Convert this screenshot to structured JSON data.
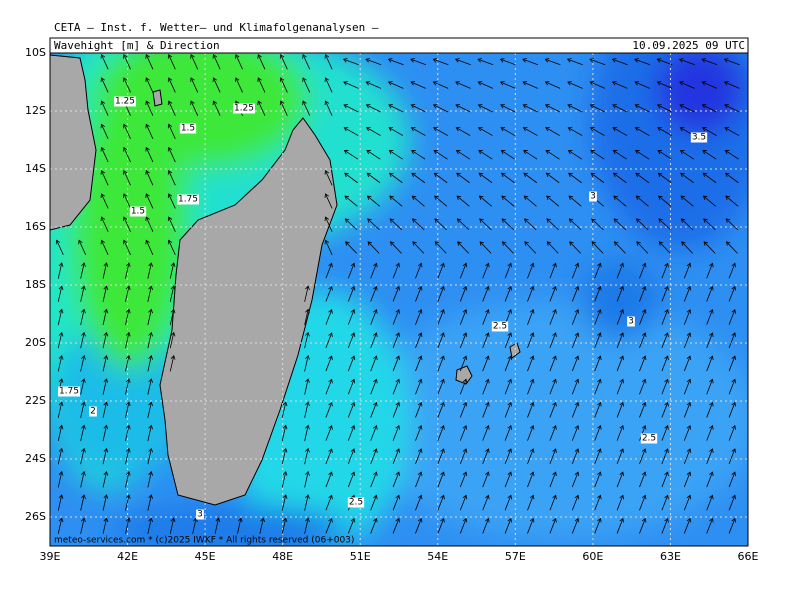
{
  "header": {
    "title": "CETA – Inst. f. Wetter– und Klimafolgenanalysen –",
    "subtitle": "Wavehight [m] & Direction",
    "datetime": "10.09.2025 09 UTC"
  },
  "footer": "meteo-services.com * (c)2025 IWKF * All rights reserved (06+003)",
  "axes": {
    "lat": [
      "10S",
      "12S",
      "14S",
      "16S",
      "18S",
      "20S",
      "22S",
      "24S",
      "26S"
    ],
    "lon": [
      "39E",
      "42E",
      "45E",
      "48E",
      "51E",
      "54E",
      "57E",
      "60E",
      "63E",
      "66E"
    ]
  },
  "contour_labels": [
    "1.25",
    "1.5",
    "1.25",
    "1.75",
    "1.5",
    "1.75",
    "2",
    "3",
    "3.5",
    "2.5",
    "3",
    "2.5",
    "2.5",
    "3"
  ]
}
